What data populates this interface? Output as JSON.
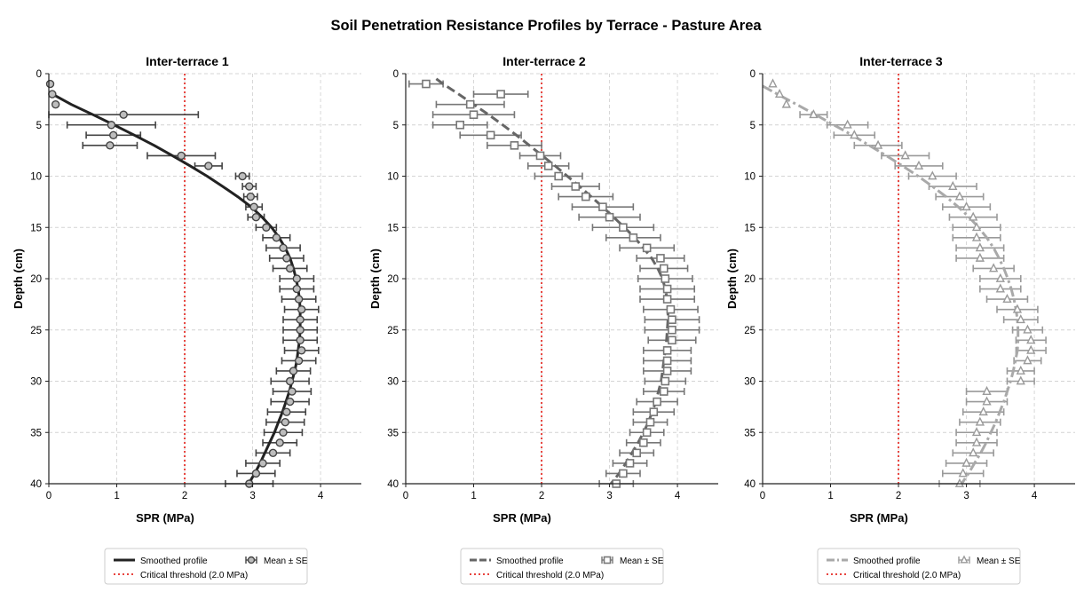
{
  "figure": {
    "title": "Soil Penetration Resistance Profiles by Terrace - Pasture Area"
  },
  "chart_data": [
    {
      "type": "scatter",
      "title": "Inter-terrace 1",
      "xlabel": "SPR (MPa)",
      "ylabel": "Depth (cm)",
      "xlim": [
        0,
        4.6
      ],
      "ylim": [
        40,
        0
      ],
      "y_inverted": true,
      "xticks": [
        "0",
        "1",
        "2",
        "3",
        "4"
      ],
      "yticks": [
        "0",
        "5",
        "10",
        "15",
        "20",
        "25",
        "30",
        "35",
        "40"
      ],
      "grid": true,
      "threshold": {
        "x": 2.0,
        "color": "#e8443f"
      },
      "series": [
        {
          "name": "Mean ± SE",
          "marker": "circle",
          "color": "#444444",
          "fill": "#bdbdbd",
          "depth": [
            1,
            2,
            3,
            4,
            5,
            6,
            7,
            8,
            9,
            10,
            11,
            12,
            13,
            14,
            15,
            16,
            17,
            18,
            19,
            20,
            21,
            22,
            23,
            24,
            25,
            26,
            27,
            28,
            29,
            30,
            31,
            32,
            33,
            34,
            35,
            36,
            37,
            38,
            39,
            40
          ],
          "spr": [
            0.02,
            0.05,
            0.1,
            1.1,
            0.92,
            0.95,
            0.9,
            1.95,
            2.35,
            2.85,
            2.95,
            2.97,
            3.02,
            3.05,
            3.2,
            3.35,
            3.45,
            3.5,
            3.55,
            3.65,
            3.65,
            3.68,
            3.72,
            3.7,
            3.7,
            3.7,
            3.72,
            3.68,
            3.6,
            3.55,
            3.58,
            3.55,
            3.5,
            3.48,
            3.45,
            3.4,
            3.3,
            3.15,
            3.05,
            2.95
          ],
          "se": [
            0,
            0,
            0,
            1.1,
            0.65,
            0.4,
            0.4,
            0.5,
            0.2,
            0.1,
            0.1,
            0.1,
            0.12,
            0.12,
            0.15,
            0.2,
            0.25,
            0.25,
            0.25,
            0.25,
            0.25,
            0.25,
            0.25,
            0.25,
            0.25,
            0.25,
            0.25,
            0.25,
            0.25,
            0.28,
            0.28,
            0.28,
            0.28,
            0.28,
            0.28,
            0.25,
            0.25,
            0.25,
            0.28,
            0.35
          ]
        },
        {
          "name": "Smoothed profile",
          "color": "#222222",
          "dash": "",
          "width": 3,
          "depth": [
            1.8,
            3,
            4,
            5,
            6,
            7,
            8,
            9,
            10,
            11,
            12,
            13,
            14,
            15,
            16,
            17,
            18,
            19,
            20,
            21,
            22,
            23,
            24,
            25,
            26,
            27,
            28,
            29,
            30,
            31,
            32,
            33,
            34,
            35,
            36,
            37,
            38,
            39,
            40
          ],
          "spr": [
            0,
            0.33,
            0.65,
            0.96,
            1.26,
            1.55,
            1.82,
            2.08,
            2.33,
            2.56,
            2.78,
            2.98,
            3.14,
            3.28,
            3.39,
            3.48,
            3.55,
            3.6,
            3.64,
            3.67,
            3.69,
            3.7,
            3.7,
            3.7,
            3.69,
            3.67,
            3.65,
            3.62,
            3.58,
            3.54,
            3.49,
            3.44,
            3.38,
            3.32,
            3.25,
            3.18,
            3.11,
            3.03,
            2.94
          ]
        }
      ],
      "legend": {
        "position": "bottom",
        "entries": [
          "Smoothed profile",
          "Mean ± SE",
          "Critical threshold (2.0 MPa)"
        ]
      }
    },
    {
      "type": "scatter",
      "title": "Inter-terrace 2",
      "xlabel": "SPR (MPa)",
      "ylabel": "Depth (cm)",
      "xlim": [
        0,
        4.6
      ],
      "ylim": [
        40,
        0
      ],
      "y_inverted": true,
      "xticks": [
        "0",
        "1",
        "2",
        "3",
        "4"
      ],
      "yticks": [
        "0",
        "5",
        "10",
        "15",
        "20",
        "25",
        "30",
        "35",
        "40"
      ],
      "grid": true,
      "threshold": {
        "x": 2.0,
        "color": "#e8443f"
      },
      "series": [
        {
          "name": "Mean ± SE",
          "marker": "square",
          "color": "#777777",
          "fill": "#ffffff",
          "depth": [
            1,
            2,
            3,
            4,
            5,
            6,
            7,
            8,
            9,
            10,
            11,
            12,
            13,
            14,
            15,
            16,
            17,
            18,
            19,
            20,
            21,
            22,
            23,
            24,
            25,
            26,
            27,
            28,
            29,
            30,
            31,
            32,
            33,
            34,
            35,
            36,
            37,
            38,
            39,
            40
          ],
          "spr": [
            0.3,
            1.4,
            0.95,
            1.0,
            0.8,
            1.25,
            1.6,
            1.98,
            2.1,
            2.25,
            2.5,
            2.65,
            2.9,
            3.0,
            3.2,
            3.35,
            3.55,
            3.75,
            3.8,
            3.82,
            3.85,
            3.85,
            3.9,
            3.92,
            3.92,
            3.92,
            3.85,
            3.85,
            3.85,
            3.82,
            3.8,
            3.7,
            3.65,
            3.6,
            3.55,
            3.5,
            3.4,
            3.3,
            3.2,
            3.1
          ],
          "se": [
            0.25,
            0.4,
            0.5,
            0.6,
            0.4,
            0.45,
            0.4,
            0.3,
            0.3,
            0.35,
            0.35,
            0.4,
            0.45,
            0.45,
            0.45,
            0.4,
            0.4,
            0.35,
            0.35,
            0.4,
            0.4,
            0.4,
            0.4,
            0.4,
            0.4,
            0.35,
            0.35,
            0.35,
            0.35,
            0.3,
            0.3,
            0.3,
            0.3,
            0.25,
            0.25,
            0.25,
            0.25,
            0.25,
            0.25,
            0.25
          ]
        },
        {
          "name": "Smoothed profile",
          "color": "#666666",
          "dash": "10 5",
          "width": 3,
          "depth": [
            0.5,
            1,
            2,
            3,
            4,
            5,
            6,
            7,
            8,
            9,
            10,
            11,
            12,
            13,
            14,
            15,
            16,
            17,
            18,
            19,
            20,
            21,
            22,
            23,
            24,
            25,
            26,
            27,
            28,
            29,
            30,
            31,
            32,
            33,
            34,
            35,
            36,
            37,
            38,
            39,
            40
          ],
          "spr": [
            0.45,
            0.55,
            0.78,
            1.0,
            1.22,
            1.43,
            1.63,
            1.82,
            2.01,
            2.2,
            2.38,
            2.56,
            2.73,
            2.9,
            3.06,
            3.22,
            3.37,
            3.5,
            3.62,
            3.71,
            3.78,
            3.82,
            3.85,
            3.86,
            3.86,
            3.85,
            3.84,
            3.82,
            3.8,
            3.78,
            3.76,
            3.72,
            3.68,
            3.63,
            3.57,
            3.5,
            3.42,
            3.33,
            3.24,
            3.14,
            3.02
          ]
        }
      ],
      "legend": {
        "position": "bottom",
        "entries": [
          "Smoothed profile",
          "Mean ± SE",
          "Critical threshold (2.0 MPa)"
        ]
      }
    },
    {
      "type": "scatter",
      "title": "Inter-terrace 3",
      "xlabel": "SPR (MPa)",
      "ylabel": "Depth (cm)",
      "xlim": [
        0,
        4.6
      ],
      "ylim": [
        40,
        0
      ],
      "y_inverted": true,
      "xticks": [
        "0",
        "1",
        "2",
        "3",
        "4"
      ],
      "yticks": [
        "0",
        "5",
        "10",
        "15",
        "20",
        "25",
        "30",
        "35",
        "40"
      ],
      "grid": true,
      "threshold": {
        "x": 2.0,
        "color": "#e8443f"
      },
      "series": [
        {
          "name": "Mean ± SE",
          "marker": "triangle",
          "color": "#9a9a9a",
          "fill": "#ffffff",
          "depth": [
            1,
            2,
            3,
            4,
            5,
            6,
            7,
            8,
            9,
            10,
            11,
            12,
            13,
            14,
            15,
            16,
            17,
            18,
            19,
            20,
            21,
            22,
            23,
            24,
            25,
            26,
            27,
            28,
            29,
            30,
            31,
            32,
            33,
            34,
            35,
            36,
            37,
            38,
            39,
            40
          ],
          "spr": [
            0.15,
            0.25,
            0.35,
            0.75,
            1.25,
            1.35,
            1.7,
            2.1,
            2.3,
            2.5,
            2.8,
            2.9,
            3.0,
            3.1,
            3.15,
            3.15,
            3.2,
            3.2,
            3.4,
            3.5,
            3.5,
            3.6,
            3.75,
            3.8,
            3.9,
            3.95,
            3.95,
            3.9,
            3.8,
            3.8,
            3.3,
            3.3,
            3.25,
            3.2,
            3.15,
            3.15,
            3.1,
            3.0,
            2.95,
            2.9
          ],
          "se": [
            0,
            0,
            0,
            0.2,
            0.3,
            0.3,
            0.35,
            0.35,
            0.35,
            0.35,
            0.35,
            0.35,
            0.35,
            0.35,
            0.35,
            0.35,
            0.35,
            0.35,
            0.3,
            0.3,
            0.3,
            0.3,
            0.3,
            0.25,
            0.22,
            0.22,
            0.22,
            0.2,
            0.2,
            0.2,
            0.3,
            0.3,
            0.3,
            0.3,
            0.3,
            0.3,
            0.3,
            0.3,
            0.3,
            0.3
          ]
        },
        {
          "name": "Smoothed profile",
          "color": "#a9a9a9",
          "dash": "12 4 3 4",
          "width": 3,
          "depth": [
            1.2,
            2,
            3,
            4,
            5,
            6,
            7,
            8,
            9,
            10,
            11,
            12,
            13,
            14,
            15,
            16,
            17,
            18,
            19,
            20,
            21,
            22,
            23,
            24,
            25,
            26,
            27,
            28,
            29,
            30,
            31,
            32,
            33,
            34,
            35,
            36,
            37,
            38,
            39,
            40
          ],
          "spr": [
            0,
            0.22,
            0.5,
            0.78,
            1.05,
            1.32,
            1.57,
            1.82,
            2.06,
            2.29,
            2.5,
            2.7,
            2.88,
            3.04,
            3.18,
            3.3,
            3.4,
            3.48,
            3.55,
            3.61,
            3.66,
            3.7,
            3.73,
            3.75,
            3.76,
            3.76,
            3.75,
            3.72,
            3.69,
            3.65,
            3.6,
            3.55,
            3.49,
            3.43,
            3.36,
            3.29,
            3.21,
            3.12,
            3.03,
            2.93
          ]
        }
      ],
      "legend": {
        "position": "bottom",
        "entries": [
          "Smoothed profile",
          "Mean ± SE",
          "Critical threshold (2.0 MPa)"
        ]
      }
    }
  ]
}
